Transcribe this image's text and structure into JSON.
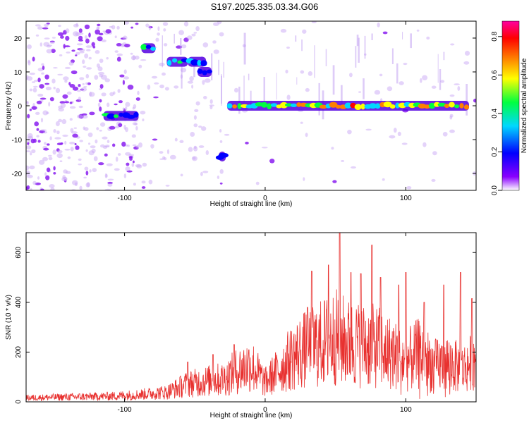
{
  "figure": {
    "title": "S197.2025.335.03.34.G06"
  },
  "chart_data": [
    {
      "type": "heatmap",
      "panel": "spectrogram",
      "xlabel": "Height of straight line (km)",
      "ylabel": "Frequency (Hz)",
      "xlim": [
        -170,
        150
      ],
      "ylim": [
        -25,
        25
      ],
      "xticks": [
        -100,
        0,
        100
      ],
      "yticks": [
        -20,
        -10,
        0,
        10,
        20
      ],
      "colorbar": {
        "label": "Normalized spectral amplitude",
        "range": [
          0.0,
          0.88
        ],
        "ticks": [
          0.0,
          0.2,
          0.4,
          0.6,
          0.8
        ],
        "colormap": [
          "#ffffff",
          "#8a00ff",
          "#0000ff",
          "#00d8ff",
          "#00ff40",
          "#ffff00",
          "#ff8000",
          "#ff0000",
          "#ff00a0"
        ]
      },
      "segments": [
        {
          "x": [
            -115,
            -90
          ],
          "freq": -3,
          "amp": 0.35
        },
        {
          "x": [
            -88,
            -78
          ],
          "freq": 17,
          "amp": 0.4
        },
        {
          "x": [
            -70,
            -55
          ],
          "freq": 13,
          "amp": 0.35
        },
        {
          "x": [
            -55,
            -42
          ],
          "freq": 13,
          "amp": 0.35
        },
        {
          "x": [
            -48,
            -38
          ],
          "freq": 10,
          "amp": 0.3
        },
        {
          "x": [
            -33,
            -28
          ],
          "freq": -15,
          "amp": 0.3
        },
        {
          "x": [
            -27,
            145
          ],
          "freq": 0,
          "amp": 0.6
        }
      ],
      "grid": false
    },
    {
      "type": "line",
      "panel": "snr",
      "xlabel": "Height of straight line (km)",
      "ylabel": "SNR (10 * v/v)",
      "xlim": [
        -170,
        150
      ],
      "ylim": [
        0,
        680
      ],
      "xticks": [
        -100,
        0,
        100
      ],
      "yticks": [
        0,
        200,
        400,
        600
      ],
      "color": "#e8312f",
      "envelope": [
        {
          "x": -170,
          "y": 25
        },
        {
          "x": -140,
          "y": 30
        },
        {
          "x": -110,
          "y": 35
        },
        {
          "x": -90,
          "y": 45
        },
        {
          "x": -70,
          "y": 60
        },
        {
          "x": -55,
          "y": 110
        },
        {
          "x": -40,
          "y": 130
        },
        {
          "x": -30,
          "y": 140
        },
        {
          "x": -20,
          "y": 190
        },
        {
          "x": -10,
          "y": 230
        },
        {
          "x": 0,
          "y": 120
        },
        {
          "x": 10,
          "y": 200
        },
        {
          "x": 20,
          "y": 280
        },
        {
          "x": 30,
          "y": 330
        },
        {
          "x": 40,
          "y": 360
        },
        {
          "x": 50,
          "y": 400
        },
        {
          "x": 60,
          "y": 360
        },
        {
          "x": 70,
          "y": 350
        },
        {
          "x": 80,
          "y": 340
        },
        {
          "x": 90,
          "y": 300
        },
        {
          "x": 100,
          "y": 250
        },
        {
          "x": 110,
          "y": 300
        },
        {
          "x": 120,
          "y": 220
        },
        {
          "x": 130,
          "y": 240
        },
        {
          "x": 140,
          "y": 200
        },
        {
          "x": 150,
          "y": 260
        }
      ],
      "peaks": [
        {
          "x": -55,
          "y": 160
        },
        {
          "x": -37,
          "y": 190
        },
        {
          "x": -22,
          "y": 230
        },
        {
          "x": 30,
          "y": 380
        },
        {
          "x": 33,
          "y": 525
        },
        {
          "x": 45,
          "y": 550
        },
        {
          "x": 53,
          "y": 680
        },
        {
          "x": 61,
          "y": 520
        },
        {
          "x": 68,
          "y": 515
        },
        {
          "x": 76,
          "y": 630
        },
        {
          "x": 82,
          "y": 500
        },
        {
          "x": 95,
          "y": 470
        },
        {
          "x": 100,
          "y": 520
        },
        {
          "x": 113,
          "y": 400
        },
        {
          "x": 127,
          "y": 470
        },
        {
          "x": 139,
          "y": 520
        },
        {
          "x": 147,
          "y": 415
        }
      ],
      "grid": false
    }
  ]
}
